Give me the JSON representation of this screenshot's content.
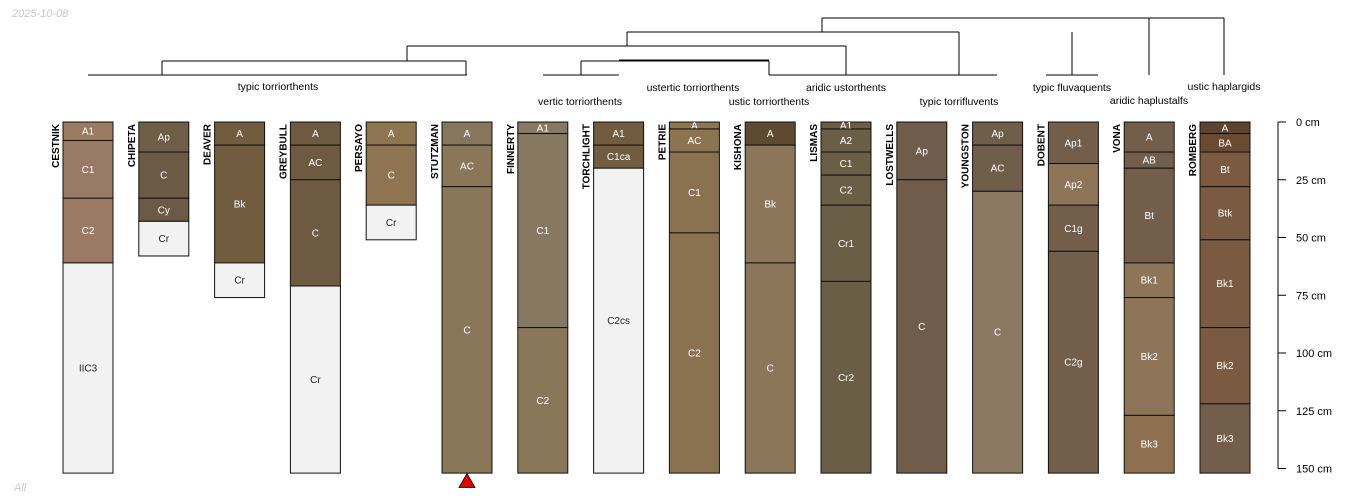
{
  "date_label": "2025-10-08",
  "footer_label": "All",
  "chart_data": {
    "type": "soil-profile-sketch",
    "title": "",
    "depth_unit": "cm",
    "depth_range": [
      0,
      150
    ],
    "depth_ticks": [
      {
        "value": 0,
        "label": "0 cm"
      },
      {
        "value": 25,
        "label": "25 cm"
      },
      {
        "value": 50,
        "label": "50 cm"
      },
      {
        "value": 75,
        "label": "75 cm"
      },
      {
        "value": 100,
        "label": "100 cm"
      },
      {
        "value": 125,
        "label": "125 cm"
      },
      {
        "value": 150,
        "label": "150 cm"
      }
    ],
    "group_labels": [
      "typic torriorthents",
      "vertic torriorthents",
      "ustertic torriorthents",
      "ustic torriorthents",
      "aridic ustorthents",
      "typic torrifluvents",
      "typic fluvaquents",
      "aridic haplustalfs",
      "ustic haplargids"
    ],
    "dendrogram_order": [
      "CESTNIK",
      "CHIPETA",
      "DEAVER",
      "GREYBULL",
      "PERSAYO",
      "STUTZMAN",
      "FINNERTY",
      "TORCHLIGHT",
      "PETRIE",
      "KISHONA",
      "LISMAS",
      "LOSTWELLS",
      "YOUNGSTON",
      "DOBENT",
      "VONA",
      "ROMBERG"
    ],
    "highlighted_profile": "STUTZMAN",
    "profiles": [
      {
        "name": "CESTNIK",
        "horizons": [
          {
            "name": "A1",
            "top": 0,
            "bottom": 8,
            "color": "#9a7a60"
          },
          {
            "name": "C1",
            "top": 8,
            "bottom": 33,
            "color": "#987a66"
          },
          {
            "name": "C2",
            "top": 33,
            "bottom": 61,
            "color": "#9a7a64"
          },
          {
            "name": "IIC3",
            "top": 61,
            "bottom": 152,
            "color": "#f2f2f2"
          }
        ]
      },
      {
        "name": "CHIPETA",
        "horizons": [
          {
            "name": "Ap",
            "top": 0,
            "bottom": 13,
            "color": "#6e5e48"
          },
          {
            "name": "C",
            "top": 13,
            "bottom": 33,
            "color": "#6b5b46"
          },
          {
            "name": "Cy",
            "top": 33,
            "bottom": 43,
            "color": "#6b5b46"
          },
          {
            "name": "Cr",
            "top": 43,
            "bottom": 58,
            "color": "#f2f2f2"
          }
        ]
      },
      {
        "name": "DEAVER",
        "horizons": [
          {
            "name": "A",
            "top": 0,
            "bottom": 10,
            "color": "#725c40"
          },
          {
            "name": "Bk",
            "top": 10,
            "bottom": 61,
            "color": "#725c40"
          },
          {
            "name": "Cr",
            "top": 61,
            "bottom": 76,
            "color": "#f2f2f2"
          }
        ]
      },
      {
        "name": "GREYBULL",
        "horizons": [
          {
            "name": "A",
            "top": 0,
            "bottom": 10,
            "color": "#6e5a40"
          },
          {
            "name": "AC",
            "top": 10,
            "bottom": 25,
            "color": "#6e5a40"
          },
          {
            "name": "C",
            "top": 25,
            "bottom": 71,
            "color": "#6e5a40"
          },
          {
            "name": "Cr",
            "top": 71,
            "bottom": 152,
            "color": "#f2f2f2"
          }
        ]
      },
      {
        "name": "PERSAYO",
        "horizons": [
          {
            "name": "A",
            "top": 0,
            "bottom": 10,
            "color": "#8e7652"
          },
          {
            "name": "C",
            "top": 10,
            "bottom": 36,
            "color": "#8e7450"
          },
          {
            "name": "Cr",
            "top": 36,
            "bottom": 51,
            "color": "#f2f2f2"
          }
        ]
      },
      {
        "name": "STUTZMAN",
        "horizons": [
          {
            "name": "A",
            "top": 0,
            "bottom": 10,
            "color": "#87765e"
          },
          {
            "name": "AC",
            "top": 10,
            "bottom": 28,
            "color": "#8a7658"
          },
          {
            "name": "C",
            "top": 28,
            "bottom": 152,
            "color": "#8a7658"
          }
        ]
      },
      {
        "name": "FINNERTY",
        "horizons": [
          {
            "name": "A1",
            "top": 0,
            "bottom": 5,
            "color": "#867862"
          },
          {
            "name": "C1",
            "top": 5,
            "bottom": 89,
            "color": "#877862"
          },
          {
            "name": "C2",
            "top": 89,
            "bottom": 152,
            "color": "#8a7658"
          }
        ]
      },
      {
        "name": "TORCHLIGHT",
        "horizons": [
          {
            "name": "A1",
            "top": 0,
            "bottom": 10,
            "color": "#725c40"
          },
          {
            "name": "C1ca",
            "top": 10,
            "bottom": 20,
            "color": "#725c40"
          },
          {
            "name": "C2cs",
            "top": 20,
            "bottom": 152,
            "color": "#f2f2f2"
          }
        ]
      },
      {
        "name": "PETRIE",
        "horizons": [
          {
            "name": "A",
            "top": 0,
            "bottom": 3,
            "color": "#8e7652"
          },
          {
            "name": "AC",
            "top": 3,
            "bottom": 13,
            "color": "#8c7450"
          },
          {
            "name": "C1",
            "top": 13,
            "bottom": 48,
            "color": "#8a7250"
          },
          {
            "name": "C2",
            "top": 48,
            "bottom": 152,
            "color": "#8a7250"
          }
        ]
      },
      {
        "name": "KISHONA",
        "horizons": [
          {
            "name": "A",
            "top": 0,
            "bottom": 10,
            "color": "#5e4a30"
          },
          {
            "name": "Bk",
            "top": 10,
            "bottom": 61,
            "color": "#8c765a"
          },
          {
            "name": "C",
            "top": 61,
            "bottom": 152,
            "color": "#8c765a"
          }
        ]
      },
      {
        "name": "LISMAS",
        "horizons": [
          {
            "name": "A1",
            "top": 0,
            "bottom": 3,
            "color": "#6b5e46"
          },
          {
            "name": "A2",
            "top": 3,
            "bottom": 13,
            "color": "#6b5e46"
          },
          {
            "name": "C1",
            "top": 13,
            "bottom": 23,
            "color": "#6b5e46"
          },
          {
            "name": "C2",
            "top": 23,
            "bottom": 36,
            "color": "#6b5e46"
          },
          {
            "name": "Cr1",
            "top": 36,
            "bottom": 69,
            "color": "#6b5e46"
          },
          {
            "name": "Cr2",
            "top": 69,
            "bottom": 152,
            "color": "#6b5e46"
          }
        ]
      },
      {
        "name": "LOSTWELLS",
        "horizons": [
          {
            "name": "Ap",
            "top": 0,
            "bottom": 25,
            "color": "#705c4a"
          },
          {
            "name": "C",
            "top": 25,
            "bottom": 152,
            "color": "#705c4a"
          }
        ]
      },
      {
        "name": "YOUNGSTON",
        "horizons": [
          {
            "name": "Ap",
            "top": 0,
            "bottom": 10,
            "color": "#6e5e4a"
          },
          {
            "name": "AC",
            "top": 10,
            "bottom": 30,
            "color": "#6e5e4a"
          },
          {
            "name": "C",
            "top": 30,
            "bottom": 152,
            "color": "#8a7862"
          }
        ]
      },
      {
        "name": "DOBENT",
        "horizons": [
          {
            "name": "Ap1",
            "top": 0,
            "bottom": 18,
            "color": "#725e4a"
          },
          {
            "name": "Ap2",
            "top": 18,
            "bottom": 36,
            "color": "#8e7458"
          },
          {
            "name": "C1g",
            "top": 36,
            "bottom": 56,
            "color": "#725e4a"
          },
          {
            "name": "C2g",
            "top": 56,
            "bottom": 152,
            "color": "#725e4a"
          }
        ]
      },
      {
        "name": "VONA",
        "horizons": [
          {
            "name": "A",
            "top": 0,
            "bottom": 13,
            "color": "#725e4a"
          },
          {
            "name": "AB",
            "top": 13,
            "bottom": 20,
            "color": "#725e4a"
          },
          {
            "name": "Bt",
            "top": 20,
            "bottom": 61,
            "color": "#725e4a"
          },
          {
            "name": "Bk1",
            "top": 61,
            "bottom": 76,
            "color": "#8e7458"
          },
          {
            "name": "Bk2",
            "top": 76,
            "bottom": 127,
            "color": "#8e7458"
          },
          {
            "name": "Bk3",
            "top": 127,
            "bottom": 152,
            "color": "#8e7050"
          }
        ]
      },
      {
        "name": "ROMBERG",
        "horizons": [
          {
            "name": "A",
            "top": 0,
            "bottom": 5,
            "color": "#5e4430"
          },
          {
            "name": "BA",
            "top": 5,
            "bottom": 13,
            "color": "#6b4a32"
          },
          {
            "name": "Bt",
            "top": 13,
            "bottom": 28,
            "color": "#7a5a40"
          },
          {
            "name": "Btk",
            "top": 28,
            "bottom": 51,
            "color": "#7a5a40"
          },
          {
            "name": "Bk1",
            "top": 51,
            "bottom": 89,
            "color": "#7a5a40"
          },
          {
            "name": "Bk2",
            "top": 89,
            "bottom": 122,
            "color": "#7a5a40"
          },
          {
            "name": "Bk3",
            "top": 122,
            "bottom": 152,
            "color": "#725e4a"
          }
        ]
      }
    ]
  }
}
